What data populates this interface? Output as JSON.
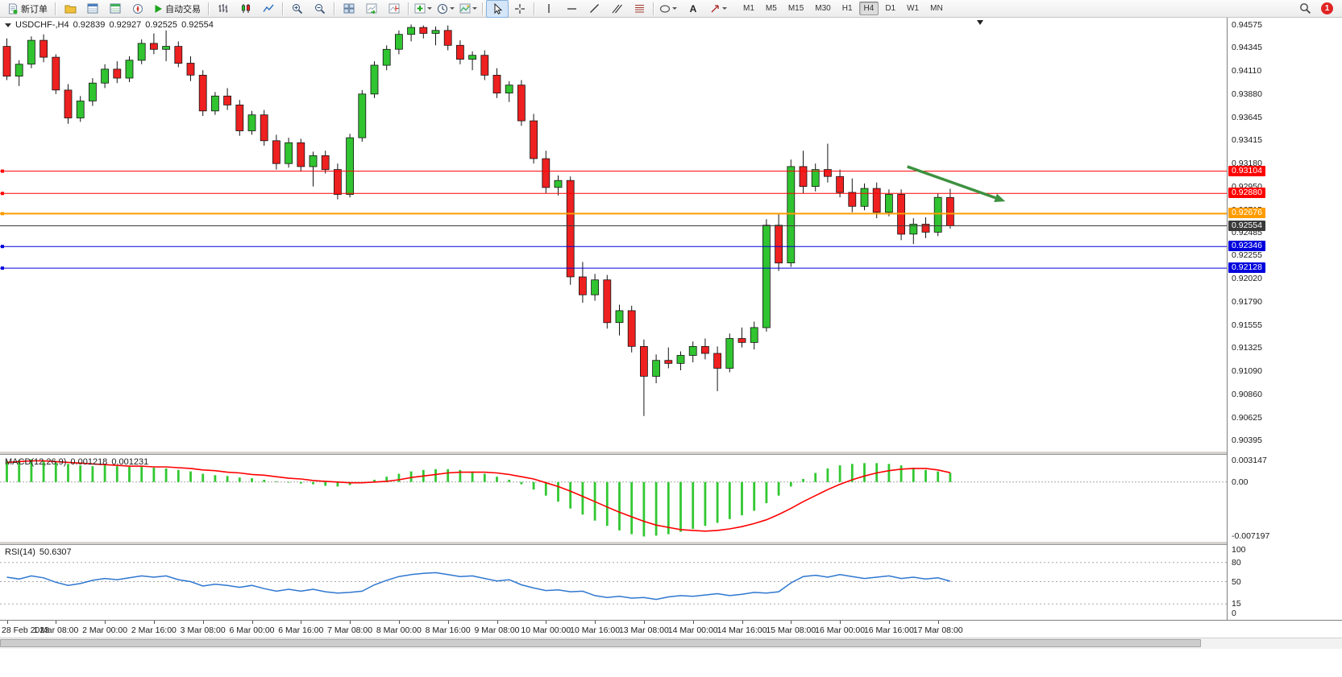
{
  "toolbar": {
    "new_order_label": "新订单",
    "autotrading_label": "自动交易",
    "text_tool_label": "A",
    "timeframes": [
      "M1",
      "M5",
      "M15",
      "M30",
      "H1",
      "H4",
      "D1",
      "W1",
      "MN"
    ],
    "active_timeframe": "H4",
    "notification_badge": "1"
  },
  "colors": {
    "bull": "#30c430",
    "bear": "#ee2020",
    "outline": "#151515",
    "macd_hist": "#32c832",
    "macd_signal": "#ff0000",
    "rsi_line": "#2e77d0",
    "grid_dash": "#a8a8a8",
    "background": "#ffffff"
  },
  "chart_data": {
    "type": "candlestick",
    "main_header": {
      "symbol": "USDCHF-,H4",
      "open": "0.92839",
      "high": "0.92927",
      "low": "0.92525",
      "close": "0.92554"
    },
    "price_axis": {
      "range": [
        0.9029,
        0.94648
      ],
      "ticks": [
        "0.94575",
        "0.94345",
        "0.94110",
        "0.93880",
        "0.93645",
        "0.93415",
        "0.93180",
        "0.92950",
        "0.92715",
        "0.92485",
        "0.92255",
        "0.92020",
        "0.91790",
        "0.91555",
        "0.91325",
        "0.91090",
        "0.90860",
        "0.90625",
        "0.90395"
      ]
    },
    "x_labels": [
      "28 Feb 2023",
      "1 Mar 08:00",
      "2 Mar 00:00",
      "2 Mar 16:00",
      "3 Mar 08:00",
      "6 Mar 00:00",
      "6 Mar 16:00",
      "7 Mar 08:00",
      "8 Mar 00:00",
      "8 Mar 16:00",
      "9 Mar 08:00",
      "10 Mar 00:00",
      "10 Mar 16:00",
      "13 Mar 08:00",
      "14 Mar 00:00",
      "14 Mar 16:00",
      "15 Mar 08:00",
      "16 Mar 00:00",
      "16 Mar 16:00",
      "17 Mar 08:00"
    ],
    "x_label_every": 4,
    "candles": [
      [
        0.9436,
        0.9444,
        0.9402,
        0.9406
      ],
      [
        0.9406,
        0.9422,
        0.9396,
        0.9418
      ],
      [
        0.9418,
        0.9446,
        0.9414,
        0.9442
      ],
      [
        0.9442,
        0.9448,
        0.942,
        0.9425
      ],
      [
        0.9425,
        0.9428,
        0.9388,
        0.9392
      ],
      [
        0.9392,
        0.9398,
        0.9358,
        0.9364
      ],
      [
        0.9364,
        0.9386,
        0.936,
        0.9381
      ],
      [
        0.9381,
        0.9404,
        0.9376,
        0.9399
      ],
      [
        0.9399,
        0.9418,
        0.9394,
        0.9413
      ],
      [
        0.9413,
        0.9421,
        0.9399,
        0.9404
      ],
      [
        0.9404,
        0.9426,
        0.94,
        0.9422
      ],
      [
        0.9422,
        0.9443,
        0.9418,
        0.9439
      ],
      [
        0.9439,
        0.9449,
        0.9428,
        0.9433
      ],
      [
        0.9433,
        0.9452,
        0.9421,
        0.9436
      ],
      [
        0.9436,
        0.9441,
        0.9415,
        0.9419
      ],
      [
        0.9419,
        0.9426,
        0.9401,
        0.9407
      ],
      [
        0.9407,
        0.9412,
        0.9366,
        0.9371
      ],
      [
        0.9371,
        0.939,
        0.9367,
        0.9386
      ],
      [
        0.9386,
        0.9394,
        0.9372,
        0.9377
      ],
      [
        0.9377,
        0.9382,
        0.9346,
        0.9351
      ],
      [
        0.9351,
        0.9371,
        0.9347,
        0.9367
      ],
      [
        0.9367,
        0.9372,
        0.9336,
        0.9341
      ],
      [
        0.9341,
        0.9347,
        0.9312,
        0.9318
      ],
      [
        0.9318,
        0.9344,
        0.9314,
        0.9339
      ],
      [
        0.9339,
        0.9343,
        0.931,
        0.9315
      ],
      [
        0.9315,
        0.933,
        0.9295,
        0.9326
      ],
      [
        0.9326,
        0.9331,
        0.9308,
        0.9312
      ],
      [
        0.9312,
        0.9318,
        0.9282,
        0.9287
      ],
      [
        0.9287,
        0.9348,
        0.9284,
        0.9344
      ],
      [
        0.9344,
        0.9392,
        0.934,
        0.9388
      ],
      [
        0.9388,
        0.9421,
        0.9384,
        0.9417
      ],
      [
        0.9417,
        0.9437,
        0.9412,
        0.9433
      ],
      [
        0.9433,
        0.9452,
        0.9428,
        0.9448
      ],
      [
        0.9448,
        0.9458,
        0.9441,
        0.9455
      ],
      [
        0.9455,
        0.9457,
        0.9444,
        0.9449
      ],
      [
        0.9449,
        0.9456,
        0.9437,
        0.9452
      ],
      [
        0.9452,
        0.9457,
        0.9432,
        0.9437
      ],
      [
        0.9437,
        0.9442,
        0.9418,
        0.9423
      ],
      [
        0.9423,
        0.9431,
        0.9412,
        0.9427
      ],
      [
        0.9427,
        0.9432,
        0.9402,
        0.9407
      ],
      [
        0.9407,
        0.9414,
        0.9384,
        0.9389
      ],
      [
        0.9389,
        0.9401,
        0.938,
        0.9397
      ],
      [
        0.9397,
        0.9402,
        0.9356,
        0.9361
      ],
      [
        0.9361,
        0.9368,
        0.9318,
        0.9323
      ],
      [
        0.9323,
        0.9331,
        0.9288,
        0.9294
      ],
      [
        0.9294,
        0.9306,
        0.9286,
        0.9301
      ],
      [
        0.9301,
        0.9305,
        0.9196,
        0.9204
      ],
      [
        0.9204,
        0.9219,
        0.9178,
        0.9186
      ],
      [
        0.9186,
        0.9207,
        0.918,
        0.9201
      ],
      [
        0.9201,
        0.9206,
        0.9152,
        0.9158
      ],
      [
        0.9158,
        0.9176,
        0.9145,
        0.917
      ],
      [
        0.917,
        0.9175,
        0.9128,
        0.9134
      ],
      [
        0.9134,
        0.9141,
        0.9064,
        0.9104
      ],
      [
        0.9104,
        0.9126,
        0.9097,
        0.912
      ],
      [
        0.912,
        0.9133,
        0.9112,
        0.9117
      ],
      [
        0.9117,
        0.9129,
        0.911,
        0.9125
      ],
      [
        0.9125,
        0.9139,
        0.9118,
        0.9134
      ],
      [
        0.9134,
        0.9142,
        0.9121,
        0.9127
      ],
      [
        0.9127,
        0.9134,
        0.9089,
        0.9112
      ],
      [
        0.9112,
        0.9147,
        0.9108,
        0.9142
      ],
      [
        0.9142,
        0.9153,
        0.9133,
        0.9138
      ],
      [
        0.9138,
        0.9159,
        0.9131,
        0.9153
      ],
      [
        0.9153,
        0.9262,
        0.9149,
        0.9256
      ],
      [
        0.9256,
        0.9268,
        0.921,
        0.9218
      ],
      [
        0.9218,
        0.9322,
        0.9214,
        0.9315
      ],
      [
        0.9315,
        0.9331,
        0.9288,
        0.9295
      ],
      [
        0.9295,
        0.9318,
        0.929,
        0.9312
      ],
      [
        0.9312,
        0.9338,
        0.9299,
        0.9305
      ],
      [
        0.9305,
        0.9312,
        0.9284,
        0.9289
      ],
      [
        0.9289,
        0.9303,
        0.9269,
        0.9275
      ],
      [
        0.9275,
        0.9298,
        0.9271,
        0.9293
      ],
      [
        0.9293,
        0.9299,
        0.9263,
        0.9269
      ],
      [
        0.9269,
        0.9292,
        0.9265,
        0.9287
      ],
      [
        0.9287,
        0.9292,
        0.9241,
        0.9247
      ],
      [
        0.9247,
        0.9263,
        0.9237,
        0.9257
      ],
      [
        0.9257,
        0.9264,
        0.9243,
        0.9249
      ],
      [
        0.9249,
        0.9288,
        0.9245,
        0.9284
      ],
      [
        0.92839,
        0.92927,
        0.92525,
        0.92554
      ]
    ],
    "hlines": [
      {
        "price": 0.93104,
        "label": "0.93104",
        "color": "#ff0000",
        "width": 1
      },
      {
        "price": 0.9288,
        "label": "0.92880",
        "color": "#ff0000",
        "width": 1
      },
      {
        "price": 0.92676,
        "label": "0.92676",
        "color": "#ff9c00",
        "width": 2
      },
      {
        "price": 0.92554,
        "label": "0.92554",
        "color": "#3a3a3a",
        "width": 1,
        "bid": true
      },
      {
        "price": 0.92346,
        "label": "0.92346",
        "color": "#0000dd",
        "width": 1
      },
      {
        "price": 0.92128,
        "label": "0.92128",
        "color": "#0000dd",
        "width": 1
      }
    ],
    "arrow": {
      "from_index": 73.5,
      "from_price": 0.9315,
      "to_index": 81.5,
      "to_price": 0.928,
      "color": "#3d9140"
    },
    "macd": {
      "name": "MACD(12,26,9)",
      "main_value": "0.001218",
      "signal_value": "0.001231",
      "ylim": [
        -0.0078,
        0.0036
      ],
      "axis": [
        {
          "label": "0.003147",
          "value": 0.003147
        },
        {
          "label": "0.00",
          "value": 0
        },
        {
          "label": "-0.007197",
          "value": -0.007197
        }
      ],
      "hist": [
        0.0028,
        0.0029,
        0.003,
        0.0028,
        0.0026,
        0.0024,
        0.0022,
        0.0021,
        0.0022,
        0.0021,
        0.002,
        0.002,
        0.0019,
        0.0018,
        0.0016,
        0.0014,
        0.0011,
        0.0009,
        0.0008,
        0.0006,
        0.0005,
        0.0003,
        0.0001,
        0.0,
        -0.0002,
        -0.0003,
        -0.0005,
        -0.0006,
        -0.0004,
        -0.0001,
        0.0003,
        0.0007,
        0.0011,
        0.0014,
        0.0016,
        0.0017,
        0.0017,
        0.0016,
        0.0014,
        0.0011,
        0.0007,
        0.0003,
        -0.0003,
        -0.001,
        -0.0018,
        -0.0026,
        -0.0035,
        -0.0043,
        -0.0051,
        -0.0058,
        -0.0064,
        -0.0069,
        -0.0072,
        -0.0071,
        -0.0069,
        -0.0066,
        -0.0062,
        -0.0058,
        -0.0054,
        -0.0049,
        -0.0044,
        -0.0038,
        -0.0028,
        -0.0018,
        -0.0006,
        0.0004,
        0.0012,
        0.0018,
        0.0022,
        0.0024,
        0.0025,
        0.0025,
        0.0024,
        0.0022,
        0.0019,
        0.0016,
        0.0014,
        0.001218
      ],
      "signal": [
        0.0026,
        0.0027,
        0.0028,
        0.0028,
        0.0027,
        0.0026,
        0.0025,
        0.0024,
        0.0023,
        0.0022,
        0.0021,
        0.0021,
        0.002,
        0.002,
        0.0019,
        0.0018,
        0.0016,
        0.0015,
        0.0013,
        0.0012,
        0.001,
        0.0009,
        0.0007,
        0.0005,
        0.0004,
        0.0002,
        0.0001,
        0.0,
        -0.0001,
        -0.0001,
        0.0,
        0.0001,
        0.0003,
        0.0006,
        0.0008,
        0.001,
        0.0012,
        0.0013,
        0.0013,
        0.0013,
        0.0012,
        0.001,
        0.0007,
        0.0004,
        -0.0001,
        -0.0006,
        -0.0012,
        -0.0019,
        -0.0026,
        -0.0033,
        -0.004,
        -0.0046,
        -0.0052,
        -0.0057,
        -0.006,
        -0.0063,
        -0.0064,
        -0.0065,
        -0.0064,
        -0.0062,
        -0.0059,
        -0.0055,
        -0.005,
        -0.0043,
        -0.0035,
        -0.0026,
        -0.0018,
        -0.001,
        -0.0003,
        0.0003,
        0.0008,
        0.0012,
        0.0015,
        0.0017,
        0.0018,
        0.0018,
        0.0016,
        0.001231
      ]
    },
    "rsi": {
      "name": "RSI(14)",
      "value": "50.6307",
      "ylim": [
        0,
        100
      ],
      "levels": [
        80,
        50,
        15
      ],
      "axis": [
        {
          "label": "100",
          "value": 100
        },
        {
          "label": "80",
          "value": 80
        },
        {
          "label": "50",
          "value": 50
        },
        {
          "label": "15",
          "value": 15
        },
        {
          "label": "0",
          "value": 0
        }
      ],
      "values": [
        57,
        54,
        59,
        56,
        49,
        44,
        47,
        52,
        55,
        53,
        56,
        59,
        57,
        59,
        53,
        50,
        43,
        46,
        44,
        41,
        44,
        39,
        35,
        38,
        35,
        38,
        34,
        32,
        33,
        35,
        45,
        52,
        58,
        61,
        63,
        64,
        61,
        58,
        59,
        55,
        51,
        53,
        45,
        40,
        36,
        37,
        34,
        35,
        28,
        25,
        27,
        24,
        25,
        22,
        26,
        28,
        27,
        29,
        31,
        28,
        30,
        33,
        32,
        34,
        48,
        58,
        60,
        57,
        61,
        58,
        55,
        57,
        59,
        55,
        57,
        54,
        56,
        50.63
      ]
    }
  }
}
